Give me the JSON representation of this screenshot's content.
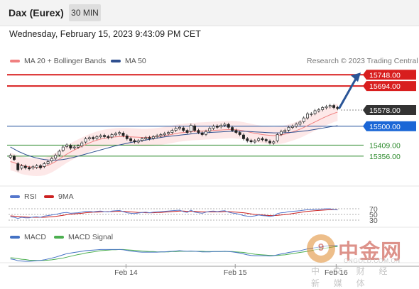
{
  "header": {
    "instrument": "Dax (Eurex)",
    "timeframe": "30 MIN",
    "timestamp": "Wednesday, February 15, 2023 9:43:09 PM CET"
  },
  "legend": {
    "ma20_label": "MA 20 + Bollinger Bands",
    "ma50_label": "MA 50",
    "copyright": "Research © 2023 Trading Central"
  },
  "rsi_legend": {
    "rsi_label": "RSI",
    "ma_label": "9MA"
  },
  "macd_legend": {
    "macd_label": "MACD",
    "signal_label": "MACD Signal"
  },
  "colors": {
    "resistance": "#d81e1e",
    "pivot": "#1f4e99",
    "current": "#333333",
    "support": "#2e8b2e",
    "ma20": "#f08080",
    "ma50": "#2f4f8f",
    "rsi": "#5577cc",
    "rsi_ma": "#cc2222",
    "macd": "#4472c4",
    "macd_signal": "#4caf50",
    "arrow": "#2a5597"
  },
  "chart_data": [
    {
      "type": "candlestick",
      "title": "Dax (Eurex)",
      "ylim": [
        15260,
        15790
      ],
      "x_ticks": [
        "Feb 14",
        "Feb 15",
        "Feb 16"
      ],
      "price_levels": [
        {
          "label": "15748.00",
          "value": 15748,
          "kind": "resistance"
        },
        {
          "label": "15694.00",
          "value": 15694,
          "kind": "resistance"
        },
        {
          "label": "15578.00",
          "value": 15578,
          "kind": "current"
        },
        {
          "label": "15500.00",
          "value": 15500,
          "kind": "pivot"
        },
        {
          "label": "15409.00",
          "value": 15409,
          "kind": "support"
        },
        {
          "label": "15356.00",
          "value": 15356,
          "kind": "support"
        }
      ],
      "close": [
        15360,
        15340,
        15290,
        15310,
        15300,
        15295,
        15305,
        15310,
        15300,
        15320,
        15330,
        15345,
        15360,
        15380,
        15400,
        15410,
        15395,
        15400,
        15405,
        15420,
        15440,
        15445,
        15440,
        15450,
        15455,
        15450,
        15445,
        15460,
        15465,
        15470,
        15455,
        15440,
        15430,
        15425,
        15430,
        15440,
        15445,
        15440,
        15450,
        15455,
        15460,
        15465,
        15470,
        15480,
        15490,
        15495,
        15480,
        15470,
        15505,
        15480,
        15470,
        15460,
        15475,
        15490,
        15500,
        15495,
        15505,
        15510,
        15495,
        15480,
        15470,
        15460,
        15440,
        15430,
        15425,
        15430,
        15440,
        15435,
        15430,
        15420,
        15425,
        15460,
        15475,
        15480,
        15495,
        15500,
        15510,
        15520,
        15540,
        15560,
        15560,
        15575,
        15580,
        15590,
        15595,
        15600,
        15590,
        15585
      ],
      "open_offsets": [
        -10,
        15,
        30,
        -12,
        8,
        6,
        -6,
        -8,
        10,
        -14,
        -10,
        -12,
        -14,
        -18,
        -16,
        -8,
        12,
        -4,
        -6,
        -14,
        -16,
        -6,
        6,
        -8,
        -6,
        6,
        6,
        -12,
        -6,
        -6,
        12,
        14,
        10,
        6,
        -6,
        -8,
        -6,
        6,
        -8,
        -6,
        -6,
        -6,
        -6,
        -10,
        -10,
        -6,
        12,
        10,
        -30,
        22,
        10,
        8,
        -14,
        -14,
        -10,
        6,
        -8,
        -6,
        14,
        14,
        10,
        10,
        18,
        10,
        6,
        -6,
        -8,
        6,
        6,
        8,
        -6,
        -30,
        -14,
        -6,
        -14,
        -6,
        -10,
        -10,
        -18,
        -20,
        -4,
        -14,
        -6,
        -10,
        -6,
        -6,
        10,
        6
      ],
      "ma20_values": [
        15330,
        15325,
        15318,
        15312,
        15308,
        15305,
        15303,
        15302,
        15303,
        15306,
        15312,
        15320,
        15330,
        15342,
        15354,
        15366,
        15376,
        15386,
        15395,
        15404,
        15412,
        15420,
        15427,
        15433,
        15438,
        15442,
        15445,
        15447,
        15449,
        15450,
        15450,
        15450,
        15449,
        15448,
        15447,
        15446,
        15446,
        15447,
        15448,
        15450,
        15452,
        15455,
        15458,
        15461,
        15465,
        15468,
        15470,
        15472,
        15474,
        15475,
        15476,
        15477,
        15478,
        15479,
        15480,
        15481,
        15482,
        15483,
        15484,
        15484,
        15483,
        15481,
        15478,
        15474,
        15470,
        15466,
        15463,
        15460,
        15458,
        15456,
        15455,
        15456,
        15458,
        15462,
        15467,
        15473,
        15479,
        15486,
        15494,
        15503,
        15512,
        15521,
        15530,
        15539,
        15547,
        15555,
        15562,
        15568
      ],
      "ma50_values": [
        15400,
        15390,
        15380,
        15372,
        15364,
        15358,
        15352,
        15347,
        15343,
        15340,
        15338,
        15337,
        15337,
        15338,
        15340,
        15343,
        15347,
        15351,
        15356,
        15361,
        15366,
        15371,
        15376,
        15381,
        15386,
        15391,
        15396,
        15401,
        15406,
        15410,
        15414,
        15418,
        15422,
        15425,
        15428,
        15431,
        15434,
        15437,
        15440,
        15443,
        15446,
        15449,
        15451,
        15453,
        15455,
        15457,
        15459,
        15461,
        15463,
        15465,
        15467,
        15468,
        15469,
        15470,
        15471,
        15472,
        15473,
        15474,
        15475,
        15476,
        15476,
        15476,
        15476,
        15475,
        15474,
        15473,
        15472,
        15471,
        15470,
        15469,
        15468,
        15468,
        15468,
        15469,
        15470,
        15471,
        15473,
        15475,
        15477,
        15479,
        15482,
        15485,
        15488,
        15491,
        15494,
        15497,
        15500,
        15503
      ],
      "bollinger_width": 42
    },
    {
      "type": "line",
      "title": "RSI",
      "ylim": [
        20,
        80
      ],
      "y_ticks": [
        "70",
        "50",
        "30"
      ],
      "series": [
        {
          "name": "RSI",
          "values": [
            42,
            40,
            36,
            40,
            38,
            38,
            41,
            42,
            40,
            44,
            46,
            48,
            50,
            53,
            56,
            57,
            54,
            55,
            56,
            58,
            61,
            61,
            59,
            61,
            62,
            60,
            59,
            62,
            63,
            64,
            60,
            56,
            54,
            53,
            55,
            57,
            58,
            56,
            58,
            59,
            60,
            61,
            62,
            63,
            64,
            65,
            60,
            57,
            65,
            58,
            56,
            54,
            58,
            61,
            62,
            60,
            62,
            63,
            58,
            55,
            53,
            50,
            46,
            44,
            43,
            45,
            48,
            46,
            45,
            43,
            45,
            53,
            56,
            57,
            60,
            61,
            62,
            63,
            65,
            67,
            66,
            68,
            68,
            69,
            70,
            70,
            67,
            66
          ]
        },
        {
          "name": "9MA",
          "values": [
            45,
            44,
            43,
            42,
            41,
            40,
            40,
            40,
            40,
            40,
            41,
            42,
            43,
            45,
            47,
            49,
            51,
            52,
            53,
            54,
            56,
            57,
            58,
            58,
            59,
            60,
            60,
            60,
            61,
            61,
            61,
            60,
            59,
            58,
            57,
            57,
            56,
            56,
            56,
            57,
            57,
            58,
            59,
            60,
            61,
            62,
            62,
            61,
            61,
            61,
            60,
            59,
            59,
            59,
            59,
            59,
            59,
            60,
            60,
            59,
            58,
            57,
            56,
            54,
            52,
            50,
            49,
            48,
            47,
            46,
            46,
            47,
            48,
            49,
            51,
            53,
            55,
            57,
            59,
            61,
            62,
            63,
            64,
            65,
            66,
            67,
            67,
            67
          ]
        }
      ]
    },
    {
      "type": "line",
      "title": "MACD",
      "series": [
        {
          "name": "MACD",
          "values": [
            -20,
            -22,
            -26,
            -27,
            -28,
            -28,
            -27,
            -26,
            -25,
            -23,
            -20,
            -17,
            -14,
            -10,
            -6,
            -2,
            0,
            2,
            4,
            6,
            8,
            9,
            10,
            11,
            12,
            12,
            12,
            12,
            12,
            12,
            11,
            9,
            7,
            5,
            4,
            3,
            3,
            3,
            3,
            3,
            4,
            4,
            5,
            6,
            7,
            8,
            7,
            6,
            7,
            6,
            5,
            4,
            4,
            4,
            5,
            5,
            5,
            6,
            5,
            4,
            2,
            0,
            -3,
            -6,
            -8,
            -9,
            -9,
            -9,
            -9,
            -10,
            -9,
            -6,
            -3,
            -1,
            2,
            4,
            6,
            8,
            11,
            14,
            16,
            18,
            20,
            22,
            24,
            25,
            25,
            25
          ]
        },
        {
          "name": "MACD Signal",
          "values": [
            -16,
            -17,
            -19,
            -21,
            -22,
            -24,
            -25,
            -25,
            -25,
            -25,
            -24,
            -23,
            -21,
            -19,
            -17,
            -14,
            -11,
            -8,
            -5,
            -3,
            0,
            2,
            4,
            6,
            8,
            9,
            10,
            11,
            11,
            12,
            12,
            11,
            10,
            9,
            8,
            7,
            6,
            5,
            5,
            4,
            4,
            4,
            4,
            5,
            5,
            6,
            6,
            6,
            6,
            6,
            6,
            6,
            5,
            5,
            5,
            5,
            5,
            5,
            5,
            5,
            4,
            3,
            2,
            0,
            -2,
            -4,
            -5,
            -6,
            -7,
            -8,
            -8,
            -8,
            -7,
            -6,
            -4,
            -2,
            0,
            2,
            4,
            6,
            8,
            11,
            13,
            15,
            17,
            19,
            21,
            22
          ]
        }
      ]
    }
  ]
}
